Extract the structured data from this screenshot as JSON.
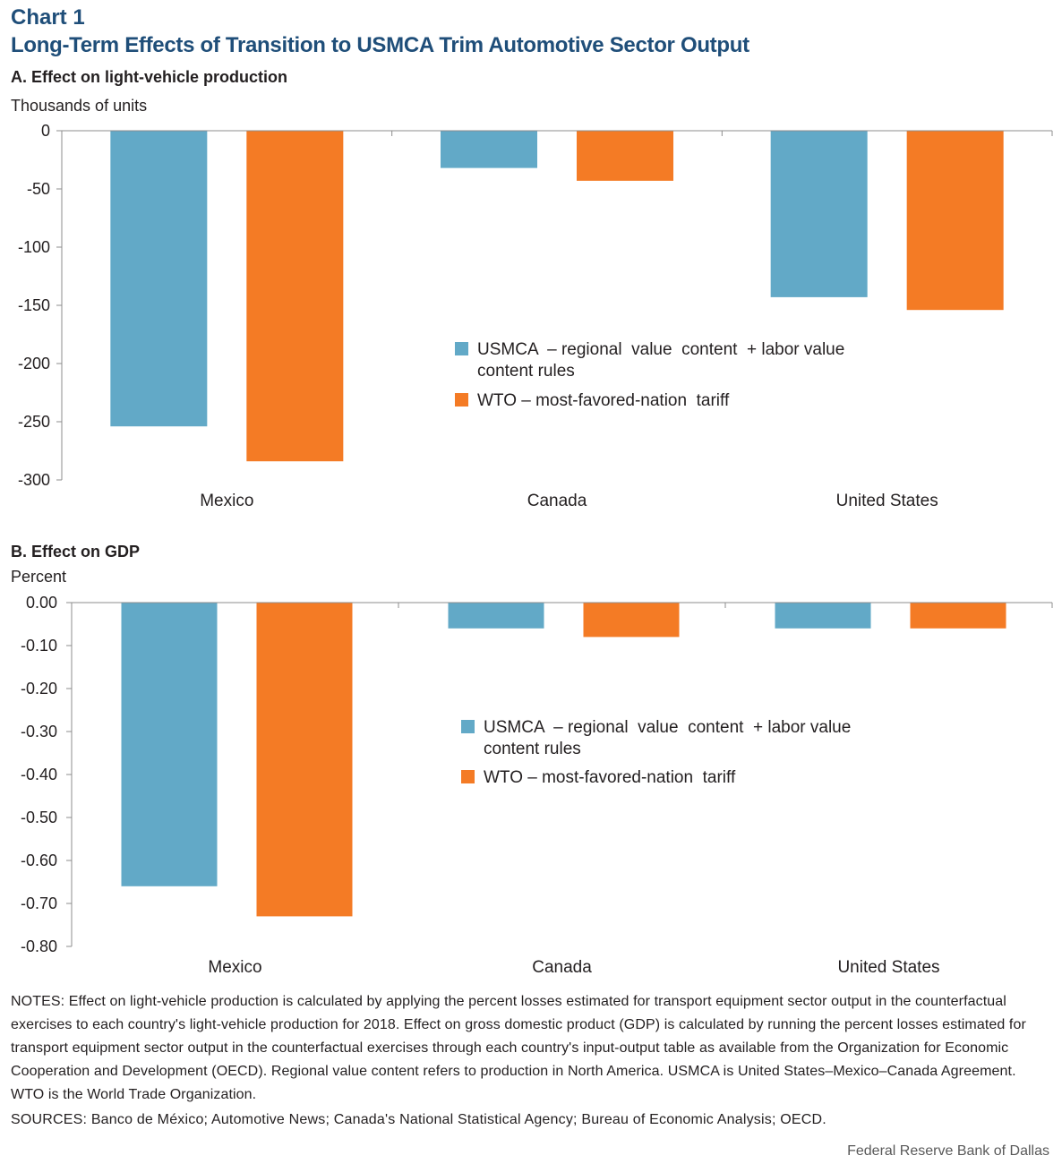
{
  "header": {
    "label": "Chart 1",
    "title": "Long-Term Effects of Transition to USMCA Trim Automotive Sector Output"
  },
  "colors": {
    "usmca": "#62a9c7",
    "wto": "#f47b25",
    "title": "#1f4e79"
  },
  "chart_data": [
    {
      "type": "bar",
      "title": "A. Effect on light-vehicle production",
      "ylabel": "Thousands  of units",
      "categories": [
        "Mexico",
        "Canada",
        "United States"
      ],
      "series": [
        {
          "name": "USMCA – regional value content + labor value content rules",
          "values": [
            -254,
            -32,
            -143
          ]
        },
        {
          "name": "WTO – most-favored-nation tariff",
          "values": [
            -284,
            -43,
            -154
          ]
        }
      ],
      "ylim": [
        -300,
        0
      ],
      "yticks": [
        0,
        -50,
        -100,
        -150,
        -200,
        -250,
        -300
      ],
      "ytick_labels": [
        "0",
        "-50",
        "-100",
        "-150",
        "-200",
        "-250",
        "-300"
      ],
      "legend_lines": [
        [
          "USMCA  – regional  value  content  + labor value",
          "content rules"
        ],
        [
          "WTO – most-favored-nation  tariff"
        ]
      ],
      "grid": false,
      "legend_position": "center"
    },
    {
      "type": "bar",
      "title": "B. Effect on GDP",
      "ylabel": "Percent",
      "categories": [
        "Mexico",
        "Canada",
        "United States"
      ],
      "series": [
        {
          "name": "USMCA – regional value content + labor value content rules",
          "values": [
            -0.66,
            -0.06,
            -0.06
          ]
        },
        {
          "name": "WTO – most-favored-nation tariff",
          "values": [
            -0.73,
            -0.08,
            -0.06
          ]
        }
      ],
      "ylim": [
        -0.8,
        0
      ],
      "yticks": [
        0,
        -0.1,
        -0.2,
        -0.3,
        -0.4,
        -0.5,
        -0.6,
        -0.7,
        -0.8
      ],
      "ytick_labels": [
        "0.00",
        "-0.10",
        "-0.20",
        "-0.30",
        "-0.40",
        "-0.50",
        "-0.60",
        "-0.70",
        "-0.80"
      ],
      "legend_lines": [
        [
          "USMCA  – regional  value  content  + labor value",
          "content rules"
        ],
        [
          "WTO – most-favored-nation  tariff"
        ]
      ],
      "grid": false,
      "legend_position": "center"
    }
  ],
  "notes": "NOTES: Effect on light-vehicle production is calculated by applying the percent losses estimated for transport equipment sector output in the counterfactual exercises to each country's light-vehicle production for 2018. Effect on gross domestic product (GDP) is calculated by running the percent losses estimated for transport equipment sector output in the counterfactual exercises through each country's input-output table as available from the Organization for Economic Cooperation and Development (OECD). Regional value content refers to production in North America. USMCA is United States–Mexico–Canada Agreement. WTO is the World Trade Organization.",
  "sources": "SOURCES: Banco de México; Automotive News; Canada's National Statistical Agency; Bureau of Economic Analysis; OECD.",
  "credit": "Federal Reserve Bank of Dallas"
}
